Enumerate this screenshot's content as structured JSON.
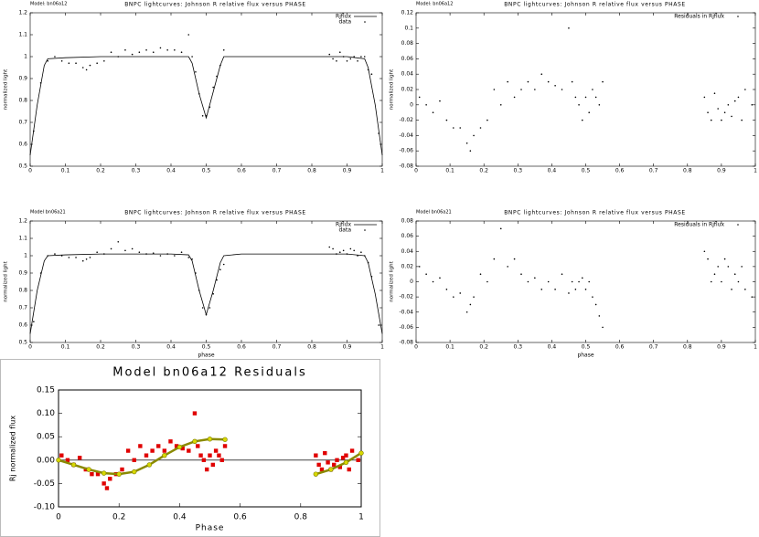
{
  "chart_data": [
    {
      "type": "line",
      "model_label": "Model: bn06a12",
      "title": "BNPC lightcurves: Johnson R relative flux versus PHASE",
      "ylabel": "normalized light",
      "xlim": [
        0,
        1
      ],
      "ylim": [
        0.5,
        1.2
      ],
      "xticks": [
        0,
        0.1,
        0.2,
        0.3,
        0.4,
        0.5,
        0.6,
        0.7,
        0.8,
        0.9,
        1
      ],
      "yticks": [
        0.5,
        0.6,
        0.7,
        0.8,
        0.9,
        1,
        1.1,
        1.2
      ],
      "legend": "upper right",
      "series": [
        {
          "name": "Rjflux",
          "style": "line",
          "color": "#000000",
          "x": [
            0,
            0.02,
            0.04,
            0.05,
            0.1,
            0.2,
            0.3,
            0.4,
            0.45,
            0.46,
            0.48,
            0.5,
            0.52,
            0.54,
            0.55,
            0.6,
            0.7,
            0.8,
            0.9,
            0.95,
            0.96,
            0.98,
            1.0
          ],
          "values": [
            0.55,
            0.78,
            0.96,
            0.99,
            0.995,
            1.0,
            1.0,
            1.0,
            1.0,
            0.97,
            0.83,
            0.72,
            0.84,
            0.96,
            1.0,
            1.0,
            1.0,
            1.0,
            1.0,
            0.99,
            0.95,
            0.78,
            0.55
          ]
        },
        {
          "name": "data",
          "style": "points",
          "color": "#000000",
          "x": [
            0.01,
            0.03,
            0.05,
            0.07,
            0.09,
            0.11,
            0.13,
            0.15,
            0.16,
            0.17,
            0.19,
            0.21,
            0.23,
            0.25,
            0.27,
            0.29,
            0.31,
            0.33,
            0.35,
            0.37,
            0.39,
            0.41,
            0.43,
            0.45,
            0.46,
            0.47,
            0.48,
            0.49,
            0.5,
            0.51,
            0.52,
            0.53,
            0.54,
            0.55,
            0.85,
            0.86,
            0.87,
            0.88,
            0.89,
            0.9,
            0.91,
            0.92,
            0.93,
            0.94,
            0.95,
            0.96,
            0.97,
            0.99
          ],
          "values": [
            0.66,
            0.88,
            0.98,
            1.0,
            0.98,
            0.97,
            0.97,
            0.95,
            0.94,
            0.96,
            0.97,
            0.98,
            1.02,
            1.0,
            1.03,
            1.01,
            1.02,
            1.03,
            1.02,
            1.04,
            1.03,
            1.03,
            1.02,
            1.1,
            1.0,
            0.93,
            0.83,
            0.73,
            0.73,
            0.77,
            0.86,
            0.91,
            0.96,
            1.03,
            1.01,
            0.99,
            0.98,
            1.02,
            1.0,
            0.98,
            0.99,
            1.0,
            0.98,
            1.0,
            1.0,
            0.94,
            0.92,
            0.65
          ]
        }
      ]
    },
    {
      "type": "line",
      "model_label": "Model bn06a21",
      "title": "BNPC lightcurves: Johnson R relative flux versus PHASE",
      "ylabel": "normalized light",
      "xlabel": "phase",
      "xlim": [
        0,
        1
      ],
      "ylim": [
        0.5,
        1.2
      ],
      "xticks": [
        0,
        0.1,
        0.2,
        0.3,
        0.4,
        0.5,
        0.6,
        0.7,
        0.8,
        0.9,
        1
      ],
      "yticks": [
        0.5,
        0.6,
        0.7,
        0.8,
        0.9,
        1,
        1.1,
        1.2
      ],
      "legend": "upper right",
      "series": [
        {
          "name": "Rjflux",
          "style": "line",
          "color": "#000000",
          "x": [
            0,
            0.02,
            0.04,
            0.05,
            0.1,
            0.2,
            0.3,
            0.4,
            0.45,
            0.46,
            0.48,
            0.5,
            0.52,
            0.54,
            0.55,
            0.6,
            0.7,
            0.8,
            0.9,
            0.95,
            0.96,
            0.98,
            1.0
          ],
          "values": [
            0.55,
            0.8,
            0.97,
            1.0,
            1.005,
            1.01,
            1.01,
            1.01,
            1.005,
            0.97,
            0.8,
            0.66,
            0.8,
            0.96,
            1.0,
            1.01,
            1.01,
            1.01,
            1.01,
            1.0,
            0.96,
            0.78,
            0.55
          ]
        },
        {
          "name": "data",
          "style": "points",
          "color": "#000000",
          "x": [
            0.01,
            0.03,
            0.05,
            0.07,
            0.09,
            0.11,
            0.13,
            0.15,
            0.16,
            0.17,
            0.19,
            0.21,
            0.23,
            0.25,
            0.27,
            0.29,
            0.31,
            0.33,
            0.35,
            0.37,
            0.39,
            0.41,
            0.43,
            0.45,
            0.46,
            0.47,
            0.48,
            0.49,
            0.5,
            0.51,
            0.52,
            0.53,
            0.54,
            0.55,
            0.85,
            0.86,
            0.87,
            0.88,
            0.89,
            0.9,
            0.91,
            0.92,
            0.93,
            0.94,
            0.95,
            0.96,
            0.97,
            0.99
          ],
          "values": [
            0.62,
            0.9,
            1.0,
            1.01,
            1.0,
            0.99,
            0.99,
            0.97,
            0.98,
            0.99,
            1.02,
            1.01,
            1.04,
            1.08,
            1.03,
            1.04,
            1.02,
            1.01,
            1.015,
            1.0,
            1.01,
            1.0,
            1.02,
            0.99,
            0.98,
            0.9,
            0.8,
            0.7,
            0.66,
            0.7,
            0.78,
            0.86,
            0.92,
            0.95,
            1.05,
            1.04,
            1.01,
            1.02,
            1.03,
            1.01,
            1.04,
            1.03,
            1.0,
            1.02,
            1.0,
            0.96,
            0.88,
            0.6
          ]
        }
      ]
    },
    {
      "type": "scatter",
      "model_label": "Model: bn06a12",
      "title": "BNPC lightcurves: Johnson R relative flux versus PHASE",
      "ylabel": "normalized light",
      "xlim": [
        0,
        1
      ],
      "ylim": [
        -0.08,
        0.12
      ],
      "xticks": [
        0,
        0.1,
        0.2,
        0.3,
        0.4,
        0.5,
        0.6,
        0.7,
        0.8,
        0.9,
        1
      ],
      "yticks": [
        -0.08,
        -0.06,
        -0.04,
        -0.02,
        0,
        0.02,
        0.04,
        0.06,
        0.08,
        0.1,
        0.12
      ],
      "legend": "upper right",
      "series": [
        {
          "name": "Residuals in Rjflux",
          "style": "points",
          "color": "#000000",
          "x": [
            0.01,
            0.03,
            0.05,
            0.07,
            0.09,
            0.11,
            0.13,
            0.15,
            0.16,
            0.17,
            0.19,
            0.21,
            0.23,
            0.25,
            0.27,
            0.29,
            0.31,
            0.33,
            0.35,
            0.37,
            0.39,
            0.41,
            0.43,
            0.45,
            0.46,
            0.47,
            0.48,
            0.49,
            0.5,
            0.51,
            0.52,
            0.53,
            0.54,
            0.55,
            0.85,
            0.86,
            0.87,
            0.88,
            0.89,
            0.9,
            0.91,
            0.92,
            0.93,
            0.94,
            0.95,
            0.96,
            0.97,
            0.99
          ],
          "values": [
            0.01,
            0.0,
            -0.01,
            0.005,
            -0.02,
            -0.03,
            -0.03,
            -0.05,
            -0.06,
            -0.04,
            -0.03,
            -0.02,
            0.02,
            0.0,
            0.03,
            0.01,
            0.02,
            0.03,
            0.02,
            0.04,
            0.03,
            0.025,
            0.02,
            0.1,
            0.03,
            0.01,
            0.0,
            -0.02,
            0.01,
            -0.01,
            0.02,
            0.01,
            0.0,
            0.03,
            0.01,
            -0.01,
            -0.02,
            0.015,
            -0.005,
            -0.02,
            -0.01,
            0.0,
            -0.015,
            0.005,
            0.01,
            -0.02,
            0.02,
            0.0
          ]
        }
      ]
    },
    {
      "type": "scatter",
      "model_label": "Model bn06a21",
      "title": "BNPC lightcurves: Johnson R relative flux versus PHASE",
      "ylabel": "normalized light",
      "xlabel": "phase",
      "xlim": [
        0,
        1
      ],
      "ylim": [
        -0.08,
        0.08
      ],
      "xticks": [
        0,
        0.1,
        0.2,
        0.3,
        0.4,
        0.5,
        0.6,
        0.7,
        0.8,
        0.9,
        1
      ],
      "yticks": [
        -0.08,
        -0.06,
        -0.04,
        -0.02,
        0,
        0.02,
        0.04,
        0.06,
        0.08
      ],
      "legend": "upper right",
      "series": [
        {
          "name": "Residuals in Rjflux",
          "style": "points",
          "color": "#000000",
          "x": [
            0.01,
            0.03,
            0.05,
            0.07,
            0.09,
            0.11,
            0.13,
            0.15,
            0.16,
            0.17,
            0.19,
            0.21,
            0.23,
            0.25,
            0.27,
            0.29,
            0.31,
            0.33,
            0.35,
            0.37,
            0.39,
            0.41,
            0.43,
            0.45,
            0.46,
            0.47,
            0.48,
            0.49,
            0.5,
            0.51,
            0.52,
            0.53,
            0.54,
            0.55,
            0.85,
            0.86,
            0.87,
            0.88,
            0.89,
            0.9,
            0.91,
            0.92,
            0.93,
            0.94,
            0.95,
            0.96,
            0.97,
            0.99
          ],
          "values": [
            0.02,
            0.01,
            0.0,
            0.005,
            -0.01,
            -0.02,
            -0.015,
            -0.04,
            -0.03,
            -0.02,
            0.01,
            0.0,
            0.03,
            0.07,
            0.02,
            0.03,
            0.01,
            0.0,
            0.005,
            -0.01,
            0.0,
            -0.01,
            0.01,
            -0.015,
            0.0,
            -0.01,
            0.0,
            0.005,
            -0.01,
            0.0,
            -0.02,
            -0.03,
            -0.045,
            -0.06,
            0.04,
            0.03,
            0.0,
            0.01,
            0.02,
            0.0,
            0.03,
            0.02,
            -0.01,
            0.01,
            0.0,
            0.02,
            -0.01,
            -0.02
          ]
        }
      ]
    },
    {
      "type": "scatter",
      "title": "Model bn06a12 Residuals",
      "ylabel": "Rj normalized flux",
      "xlabel": "Phase",
      "xlim": [
        0,
        1
      ],
      "ylim": [
        -0.1,
        0.15
      ],
      "xticks": [
        0,
        0.2,
        0.4,
        0.6,
        0.8,
        1
      ],
      "yticks": [
        {
          "value": -0.1,
          "label": "-0.10"
        },
        -0.05,
        {
          "value": 0,
          "label": "0.00"
        },
        0.05,
        {
          "value": 0.1,
          "label": "0.10"
        },
        0.15
      ],
      "series": [
        {
          "style": "squares",
          "color": "#e00000",
          "x": [
            0.01,
            0.03,
            0.05,
            0.07,
            0.09,
            0.11,
            0.13,
            0.15,
            0.16,
            0.17,
            0.19,
            0.21,
            0.23,
            0.25,
            0.27,
            0.29,
            0.31,
            0.33,
            0.35,
            0.37,
            0.39,
            0.41,
            0.43,
            0.45,
            0.46,
            0.47,
            0.48,
            0.49,
            0.5,
            0.51,
            0.52,
            0.53,
            0.54,
            0.55,
            0.85,
            0.86,
            0.87,
            0.88,
            0.89,
            0.9,
            0.91,
            0.92,
            0.93,
            0.94,
            0.95,
            0.96,
            0.97,
            0.99
          ],
          "values": [
            0.01,
            0.0,
            -0.01,
            0.005,
            -0.02,
            -0.03,
            -0.03,
            -0.05,
            -0.06,
            -0.04,
            -0.03,
            -0.02,
            0.02,
            0.0,
            0.03,
            0.01,
            0.02,
            0.03,
            0.02,
            0.04,
            0.03,
            0.025,
            0.02,
            0.1,
            0.03,
            0.01,
            0.0,
            -0.02,
            0.01,
            -0.01,
            0.02,
            0.01,
            0.0,
            0.03,
            0.01,
            -0.01,
            -0.02,
            0.015,
            -0.005,
            -0.02,
            -0.01,
            0.0,
            -0.015,
            0.005,
            0.01,
            -0.02,
            0.02,
            0.0
          ]
        },
        {
          "style": "line-markers",
          "color": "#d8d800",
          "x": [
            0,
            0.05,
            0.1,
            0.15,
            0.2,
            0.25,
            0.3,
            0.35,
            0.4,
            0.45,
            0.5,
            0.55,
            0.7,
            0.85,
            0.9,
            0.95,
            1.0
          ],
          "values": [
            0.0,
            -0.01,
            -0.02,
            -0.028,
            -0.03,
            -0.025,
            -0.01,
            0.01,
            0.028,
            0.04,
            0.045,
            0.044,
            null,
            -0.03,
            -0.02,
            -0.005,
            0.015
          ]
        }
      ]
    }
  ]
}
